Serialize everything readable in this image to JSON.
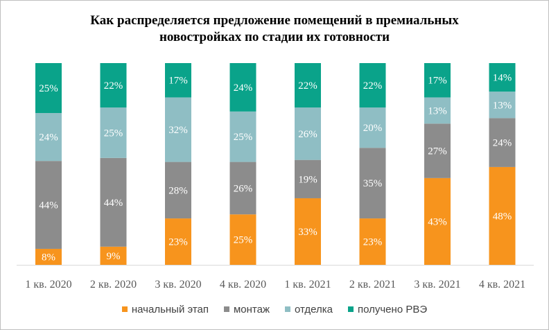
{
  "chart_data": {
    "type": "bar",
    "stacked": true,
    "title_line1": "Как распределяется предложение помещений в премиальных",
    "title_line2": "новостройках по стадии их готовности",
    "categories": [
      "1 кв. 2020",
      "2 кв. 2020",
      "3 кв. 2020",
      "4 кв. 2020",
      "1 кв. 2021",
      "2 кв. 2021",
      "3 кв. 2021",
      "4 кв. 2021"
    ],
    "series": [
      {
        "name": "начальный этап",
        "color": "#f7941d",
        "values": [
          8,
          9,
          23,
          25,
          33,
          23,
          43,
          48
        ]
      },
      {
        "name": "монтаж",
        "color": "#8c8c8c",
        "values": [
          44,
          44,
          28,
          26,
          19,
          35,
          27,
          24
        ]
      },
      {
        "name": "отделка",
        "color": "#8fbec4",
        "values": [
          24,
          25,
          32,
          25,
          26,
          20,
          13,
          13
        ]
      },
      {
        "name": "получено РВЭ",
        "color": "#0aa38a",
        "values": [
          25,
          22,
          17,
          24,
          22,
          22,
          17,
          14
        ]
      }
    ],
    "value_suffix": "%",
    "legend_position": "bottom",
    "grid": false
  }
}
